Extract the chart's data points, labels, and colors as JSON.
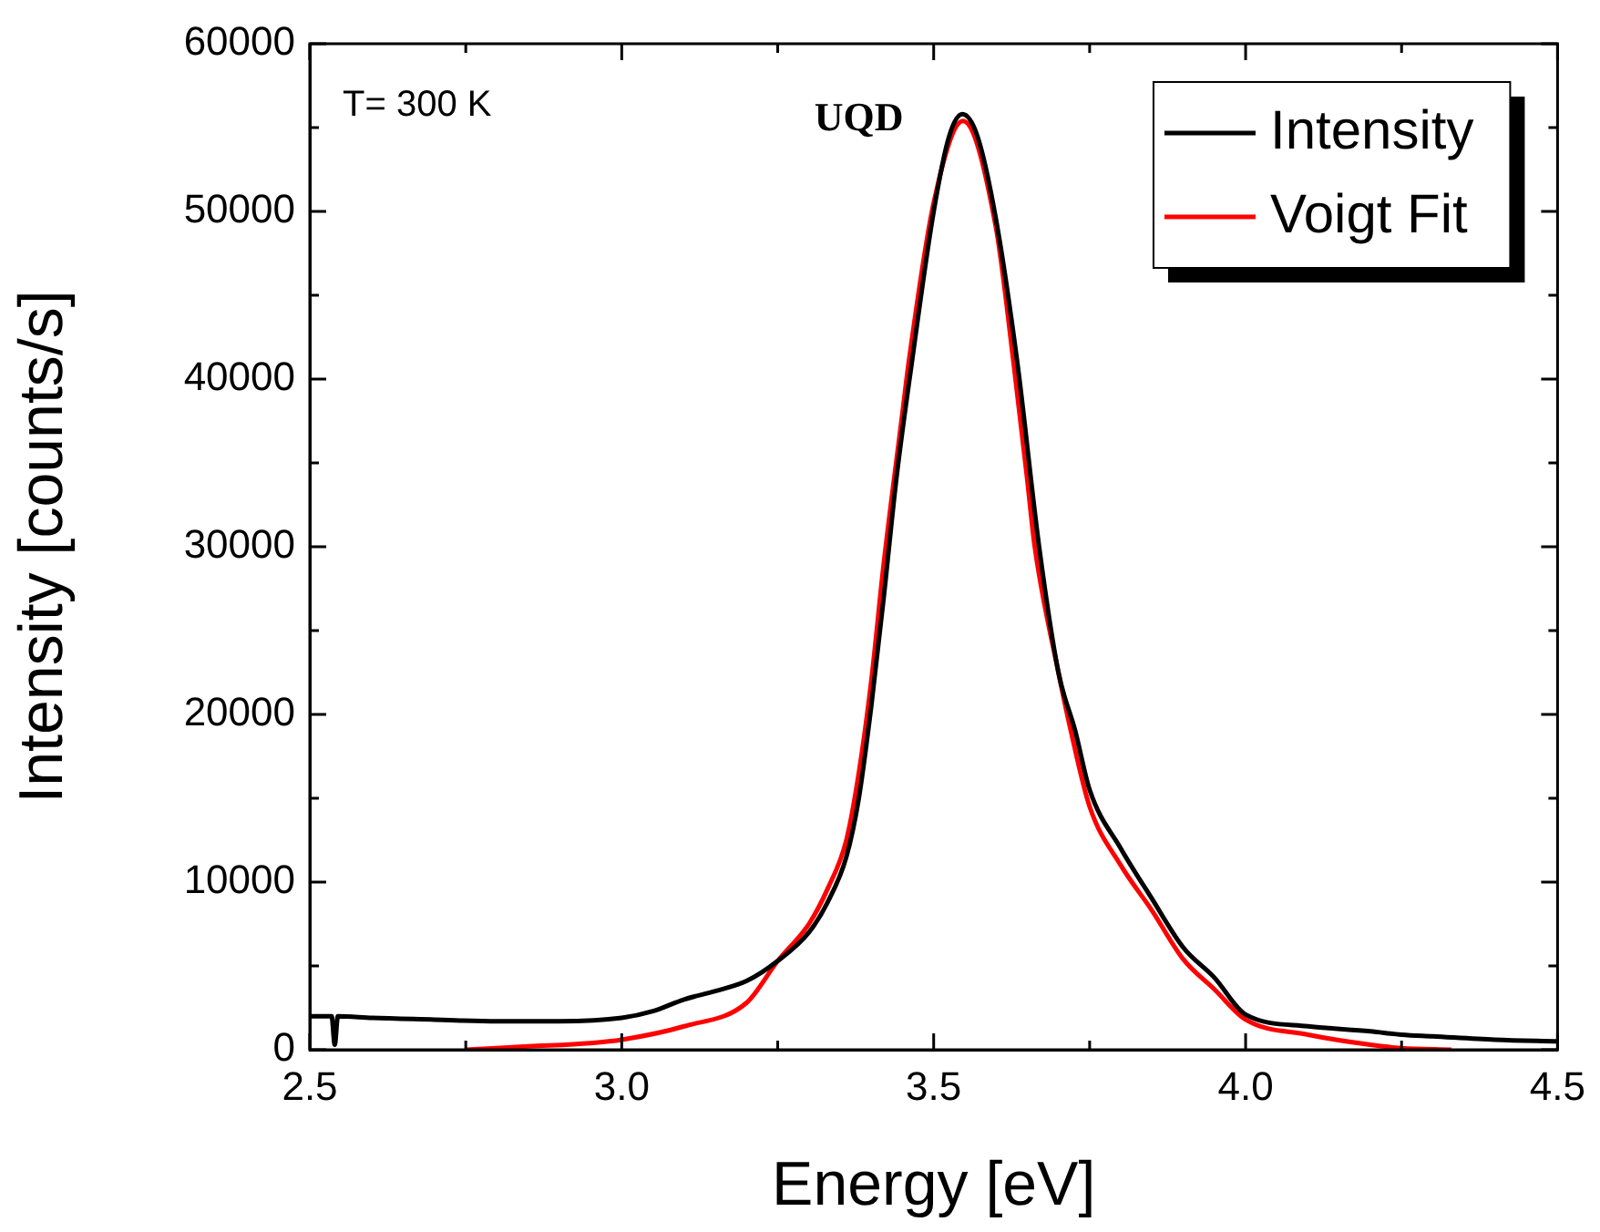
{
  "chart_data": {
    "type": "line",
    "xlabel": "Energy [eV]",
    "ylabel": "Intensity [counts/s]",
    "xlim": [
      2.5,
      4.5
    ],
    "xticks": [
      2.5,
      {
        "value": 2.75,
        "label": null
      },
      "3.0",
      {
        "value": 3.25,
        "label": null
      },
      3.5,
      {
        "value": 3.75,
        "label": null
      },
      "4.0",
      {
        "value": 4.25,
        "label": null
      },
      4.5
    ],
    "ylim": [
      0,
      60000
    ],
    "yticks": [
      0,
      {
        "value": 5000,
        "label": null
      },
      10000,
      {
        "value": 15000,
        "label": null
      },
      20000,
      {
        "value": 25000,
        "label": null
      },
      30000,
      {
        "value": 35000,
        "label": null
      },
      40000,
      {
        "value": 45000,
        "label": null
      },
      50000,
      {
        "value": 55000,
        "label": null
      },
      60000
    ],
    "legend": "top right",
    "marker": "none",
    "line_style": "solid",
    "annotations": [
      "T= 300 K",
      "UQD"
    ],
    "series": [
      {
        "name": "Intensity",
        "color": "#000000",
        "x": [
          2.5,
          2.535,
          2.54,
          2.545,
          2.6,
          2.7,
          2.8,
          2.9,
          3.0,
          3.05,
          3.1,
          3.15,
          3.2,
          3.25,
          3.3,
          3.33,
          3.36,
          3.38,
          3.4,
          3.42,
          3.44,
          3.465,
          3.5,
          3.525,
          3.546,
          3.57,
          3.6,
          3.634,
          3.669,
          3.7,
          3.727,
          3.75,
          3.8,
          3.85,
          3.9,
          3.95,
          4.0,
          4.1,
          4.2,
          4.25,
          4.3,
          4.4,
          4.5
        ],
        "values": [
          2000,
          2000,
          300,
          2000,
          1900,
          1800,
          1700,
          1700,
          1900,
          2300,
          3000,
          3500,
          4100,
          5300,
          7000,
          8800,
          11500,
          15000,
          20500,
          27000,
          34000,
          41000,
          50000,
          54500,
          55800,
          54500,
          49500,
          41000,
          30000,
          22500,
          19000,
          15500,
          12000,
          9000,
          6100,
          4300,
          2100,
          1400,
          1100,
          900,
          800,
          600,
          500
        ]
      },
      {
        "name": "Voigt Fit",
        "color": "#ff0000",
        "x": [
          2.75,
          2.85,
          2.95,
          3.0,
          3.1,
          3.2,
          3.25,
          3.3,
          3.33,
          3.36,
          3.38,
          3.4,
          3.42,
          3.45,
          3.46,
          3.5,
          3.547,
          3.6,
          3.628,
          3.65,
          3.662,
          3.7,
          3.72,
          3.75,
          3.8,
          3.85,
          3.9,
          3.95,
          4.0,
          4.1,
          4.2,
          4.25,
          4.33
        ],
        "values": [
          0,
          200,
          400,
          600,
          1400,
          2800,
          5300,
          7500,
          9600,
          12500,
          16500,
          22000,
          29000,
          38000,
          41000,
          50500,
          55400,
          49000,
          41000,
          34000,
          30000,
          22500,
          19000,
          14500,
          11000,
          8300,
          5400,
          3600,
          1800,
          900,
          300,
          100,
          0
        ]
      }
    ]
  }
}
